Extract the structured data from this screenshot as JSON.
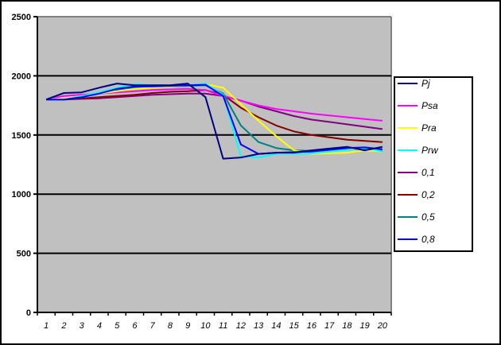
{
  "chart_data": {
    "type": "line",
    "title": "",
    "xlabel": "",
    "ylabel": "",
    "ylim": [
      0,
      2500
    ],
    "yticks": [
      0,
      500,
      1000,
      1500,
      2000,
      2500
    ],
    "x": [
      1,
      2,
      3,
      4,
      5,
      6,
      7,
      8,
      9,
      10,
      11,
      12,
      13,
      14,
      15,
      16,
      17,
      18,
      19,
      20
    ],
    "grid": true,
    "legend_position": "right",
    "plot_background": "#c0c0c0",
    "series": [
      {
        "name": "Pj",
        "color": "#000080",
        "values": [
          1800,
          1855,
          1860,
          1900,
          1935,
          1920,
          1920,
          1920,
          1935,
          1820,
          1300,
          1310,
          1340,
          1350,
          1350,
          1370,
          1385,
          1400,
          1370,
          1400
        ]
      },
      {
        "name": "Psa",
        "color": "#ff00ff",
        "values": [
          1800,
          1830,
          1840,
          1850,
          1860,
          1870,
          1880,
          1885,
          1890,
          1880,
          1830,
          1790,
          1750,
          1720,
          1700,
          1680,
          1665,
          1650,
          1635,
          1620
        ]
      },
      {
        "name": "Pra",
        "color": "#ffff00",
        "values": [
          1800,
          1810,
          1830,
          1850,
          1870,
          1890,
          1900,
          1910,
          1920,
          1930,
          1900,
          1760,
          1620,
          1490,
          1370,
          1340,
          1345,
          1350,
          1370,
          1360
        ]
      },
      {
        "name": "Prw",
        "color": "#00ffff",
        "values": [
          1800,
          1800,
          1830,
          1860,
          1900,
          1930,
          1920,
          1920,
          1920,
          1935,
          1840,
          1320,
          1310,
          1340,
          1340,
          1345,
          1360,
          1375,
          1390,
          1360
        ]
      },
      {
        "name": "0,1",
        "color": "#800080",
        "values": [
          1800,
          1800,
          1805,
          1810,
          1820,
          1830,
          1840,
          1845,
          1850,
          1850,
          1830,
          1790,
          1740,
          1700,
          1660,
          1630,
          1610,
          1590,
          1570,
          1550
        ]
      },
      {
        "name": "0,2",
        "color": "#800000",
        "values": [
          1800,
          1800,
          1810,
          1820,
          1830,
          1840,
          1855,
          1865,
          1870,
          1880,
          1840,
          1730,
          1650,
          1580,
          1530,
          1500,
          1480,
          1460,
          1450,
          1440
        ]
      },
      {
        "name": "0,5",
        "color": "#008080",
        "values": [
          1800,
          1800,
          1820,
          1850,
          1880,
          1900,
          1905,
          1910,
          1915,
          1920,
          1850,
          1580,
          1440,
          1390,
          1370,
          1365,
          1370,
          1380,
          1385,
          1370
        ]
      },
      {
        "name": "0,8",
        "color": "#0000ff",
        "values": [
          1800,
          1800,
          1820,
          1850,
          1890,
          1910,
          1910,
          1915,
          1920,
          1925,
          1830,
          1420,
          1340,
          1350,
          1355,
          1360,
          1375,
          1390,
          1395,
          1380
        ]
      }
    ]
  }
}
